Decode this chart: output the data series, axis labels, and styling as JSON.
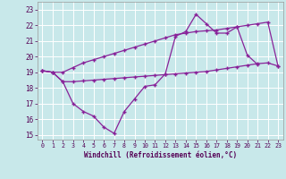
{
  "background_color": "#c8e8ea",
  "line_color": "#882299",
  "grid_color": "#aacccc",
  "xlabel": "Windchill (Refroidissement éolien,°C)",
  "ylim_min": 14.7,
  "ylim_max": 23.5,
  "xlim_min": -0.5,
  "xlim_max": 23.5,
  "yticks": [
    15,
    16,
    17,
    18,
    19,
    20,
    21,
    22,
    23
  ],
  "xticks": [
    0,
    1,
    2,
    3,
    4,
    5,
    6,
    7,
    8,
    9,
    10,
    11,
    12,
    13,
    14,
    15,
    16,
    17,
    18,
    19,
    20,
    21,
    22,
    23
  ],
  "line1_x": [
    0,
    1,
    2,
    3,
    4,
    5,
    6,
    7,
    8,
    9,
    10,
    11,
    12,
    13,
    14,
    15,
    16,
    17,
    18,
    19,
    20,
    21
  ],
  "line1_y": [
    19.1,
    19.0,
    18.4,
    17.0,
    16.5,
    16.2,
    15.5,
    15.1,
    16.5,
    17.3,
    18.1,
    18.2,
    18.9,
    21.3,
    21.6,
    22.7,
    22.1,
    21.5,
    21.5,
    21.9,
    20.1,
    19.5
  ],
  "line2_x": [
    0,
    1,
    2,
    3,
    4,
    5,
    6,
    7,
    8,
    9,
    10,
    11,
    12,
    13,
    14,
    15,
    16,
    17,
    18,
    19,
    20,
    21,
    22,
    23
  ],
  "line2_y": [
    19.1,
    19.0,
    19.0,
    19.3,
    19.6,
    19.8,
    20.0,
    20.2,
    20.4,
    20.6,
    20.8,
    21.0,
    21.2,
    21.4,
    21.5,
    21.6,
    21.65,
    21.7,
    21.8,
    21.9,
    22.0,
    22.1,
    22.2,
    19.4
  ],
  "line3_x": [
    0,
    1,
    2,
    3,
    4,
    5,
    6,
    7,
    8,
    9,
    10,
    11,
    12,
    13,
    14,
    15,
    16,
    17,
    18,
    19,
    20,
    21,
    22,
    23
  ],
  "line3_y": [
    19.1,
    19.0,
    18.4,
    18.4,
    18.45,
    18.5,
    18.55,
    18.6,
    18.65,
    18.7,
    18.75,
    18.8,
    18.85,
    18.9,
    18.95,
    19.0,
    19.05,
    19.15,
    19.25,
    19.35,
    19.45,
    19.55,
    19.6,
    19.4
  ]
}
